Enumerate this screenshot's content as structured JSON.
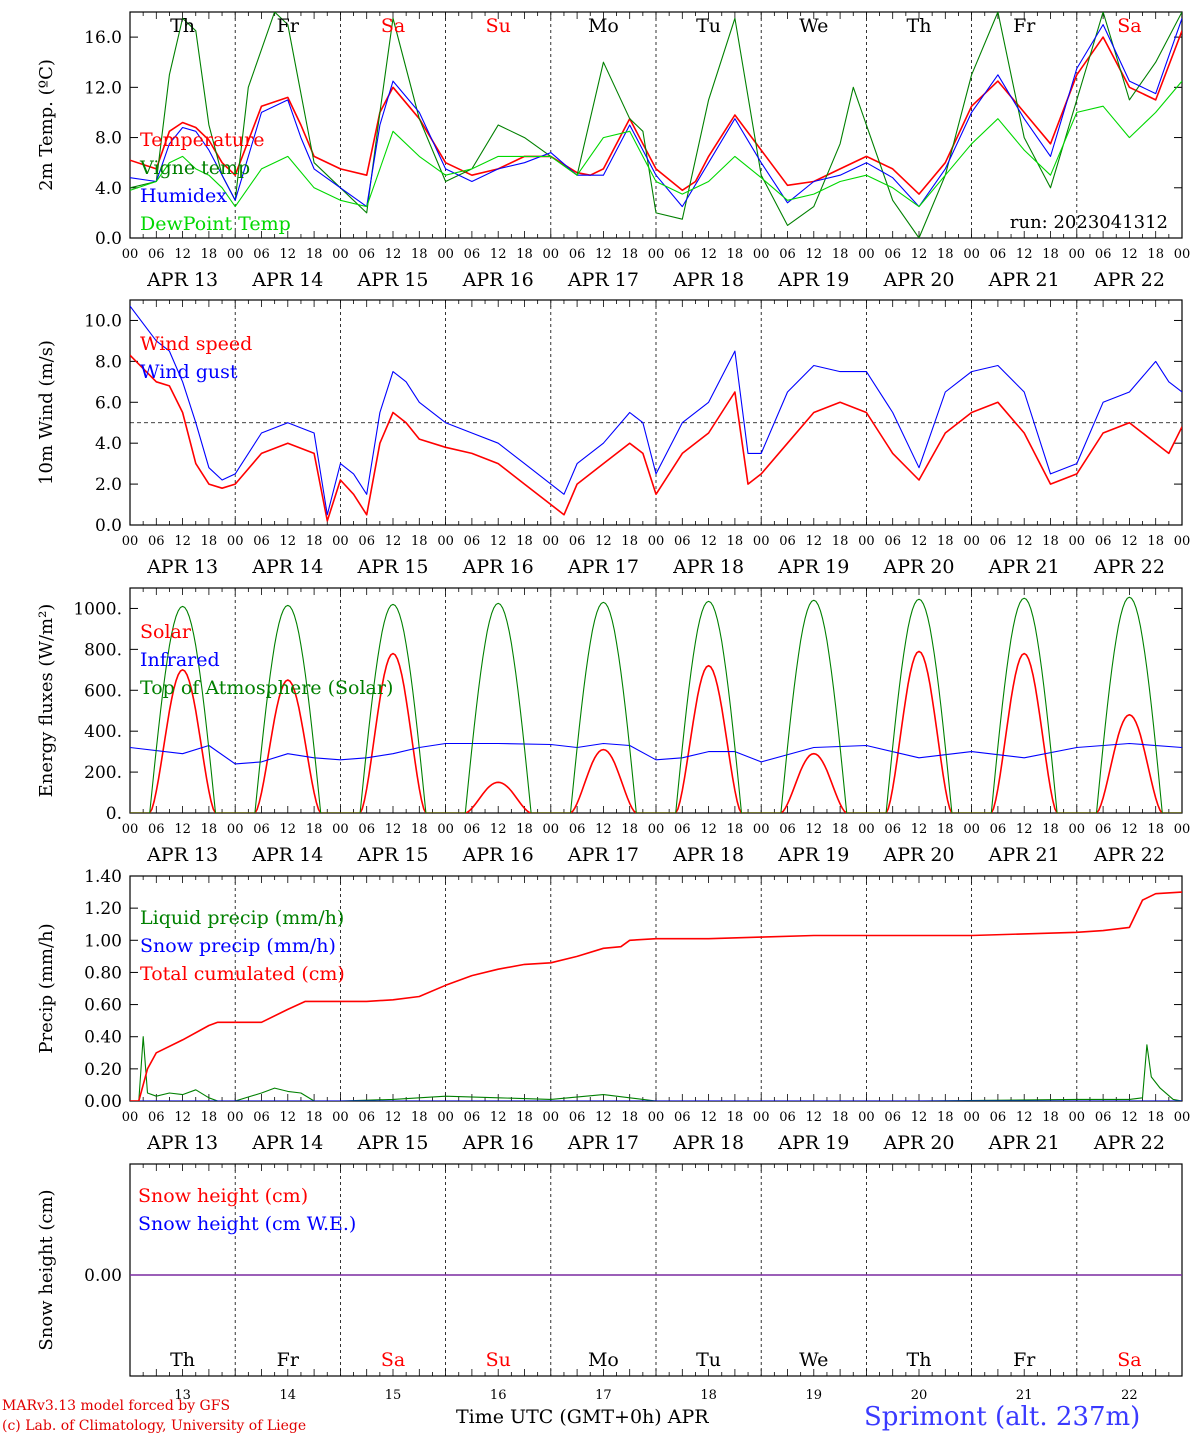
{
  "colors": {
    "red": "#ff0000",
    "green": "#008000",
    "blue": "#0000ff",
    "lightgreen": "#00d800",
    "purple": "#7a2aa0",
    "title_blue": "#3a3aff"
  },
  "footer": {
    "model": "MARv3.13 model forced by GFS",
    "lab": "(c) Lab. of Climatology, University of Liege",
    "xlabel": "Time UTC (GMT+0h)",
    "month": "APR",
    "station": "Sprimont (alt. 237m)"
  },
  "days_of_week": [
    "Th",
    "Fr",
    "Sa",
    "Su",
    "Mo",
    "Tu",
    "We",
    "Th",
    "Fr",
    "Sa"
  ],
  "weekend_days": [
    2,
    3,
    9
  ],
  "dates": [
    "APR 13",
    "APR 14",
    "APR 15",
    "APR 16",
    "APR 17",
    "APR 18",
    "APR 19",
    "APR 20",
    "APR 21",
    "APR 22"
  ],
  "day_numbers": [
    "13",
    "14",
    "15",
    "16",
    "17",
    "18",
    "19",
    "20",
    "21",
    "22"
  ],
  "hour_ticks": [
    "00",
    "06",
    "12",
    "18"
  ],
  "chart_data": [
    {
      "type": "line",
      "ylabel": "2m Temp. (ºC)",
      "ylim": [
        0,
        18
      ],
      "yticks": [
        "0.0",
        "4.0",
        "8.0",
        "12.0",
        "16.0"
      ],
      "ytick_values": [
        0,
        4,
        8,
        12,
        16
      ],
      "run_label": "run: 2023041312",
      "x_unit": "hours since APR 13 00 UTC",
      "series": [
        {
          "name": "Temperature",
          "color": "red",
          "x": [
            0,
            6,
            9,
            12,
            15,
            18,
            21,
            24,
            30,
            36,
            39,
            42,
            48,
            54,
            57,
            60,
            66,
            72,
            78,
            84,
            90,
            96,
            102,
            105,
            108,
            114,
            120,
            126,
            129,
            132,
            138,
            144,
            150,
            156,
            162,
            168,
            174,
            180,
            186,
            192,
            198,
            204,
            210,
            216,
            222,
            228,
            234,
            240
          ],
          "y": [
            6.2,
            5.5,
            8.5,
            9.2,
            8.8,
            7.8,
            6.0,
            5.0,
            10.5,
            11.2,
            9.0,
            6.5,
            5.5,
            5.0,
            10.0,
            12.0,
            9.5,
            6.0,
            5.0,
            5.5,
            6.5,
            6.5,
            5.2,
            5.0,
            5.5,
            9.5,
            5.5,
            3.8,
            4.5,
            6.5,
            9.8,
            7.0,
            4.2,
            4.5,
            5.5,
            6.5,
            5.5,
            3.5,
            6.0,
            10.5,
            12.5,
            10.0,
            7.5,
            13.0,
            16.0,
            12.0,
            11.0,
            16.5
          ]
        },
        {
          "name": "Vigne temp",
          "color": "green",
          "x": [
            0,
            6,
            9,
            12,
            15,
            18,
            21,
            24,
            27,
            33,
            36,
            42,
            48,
            54,
            57,
            60,
            66,
            72,
            78,
            84,
            90,
            96,
            102,
            108,
            114,
            117,
            120,
            126,
            132,
            138,
            144,
            150,
            156,
            162,
            165,
            168,
            174,
            180,
            186,
            192,
            198,
            204,
            210,
            216,
            222,
            228,
            234,
            240
          ],
          "y": [
            4.0,
            4.5,
            13.0,
            17.5,
            16.5,
            9.0,
            5.0,
            3.0,
            12.0,
            18.0,
            17.0,
            6.0,
            4.0,
            2.0,
            10.0,
            17.5,
            9.5,
            4.5,
            5.5,
            9.0,
            8.0,
            6.5,
            5.0,
            14.0,
            9.5,
            8.5,
            2.0,
            1.5,
            11.0,
            17.5,
            5.0,
            1.0,
            2.5,
            7.5,
            12.0,
            9.0,
            3.0,
            0.0,
            5.0,
            13.0,
            18.0,
            8.0,
            4.0,
            11.0,
            18.0,
            11.0,
            14.0,
            18.0
          ]
        },
        {
          "name": "Humidex",
          "color": "blue",
          "x": [
            0,
            6,
            9,
            12,
            15,
            18,
            21,
            24,
            30,
            36,
            39,
            42,
            48,
            54,
            57,
            60,
            66,
            72,
            78,
            84,
            90,
            96,
            102,
            108,
            114,
            120,
            126,
            132,
            138,
            144,
            150,
            156,
            162,
            168,
            174,
            180,
            186,
            192,
            198,
            204,
            210,
            216,
            222,
            228,
            234,
            240
          ],
          "y": [
            4.8,
            4.5,
            7.5,
            8.8,
            8.5,
            7.0,
            5.0,
            3.0,
            10.0,
            11.0,
            8.0,
            5.5,
            4.0,
            2.5,
            9.0,
            12.5,
            10.0,
            5.5,
            4.5,
            5.5,
            6.0,
            6.8,
            5.0,
            5.0,
            9.0,
            5.0,
            2.5,
            6.0,
            9.5,
            6.0,
            2.8,
            4.5,
            5.0,
            6.0,
            4.8,
            2.5,
            5.5,
            10.0,
            13.0,
            9.5,
            6.5,
            13.5,
            17.0,
            12.5,
            11.5,
            17.5
          ]
        },
        {
          "name": "DewPoint Temp",
          "color": "lightgreen",
          "x": [
            0,
            6,
            9,
            12,
            15,
            18,
            21,
            24,
            30,
            36,
            42,
            48,
            54,
            57,
            60,
            66,
            72,
            78,
            84,
            90,
            96,
            102,
            108,
            114,
            120,
            126,
            132,
            138,
            144,
            150,
            156,
            162,
            168,
            174,
            180,
            186,
            192,
            198,
            204,
            210,
            216,
            222,
            228,
            234,
            240
          ],
          "y": [
            3.8,
            4.5,
            6.0,
            6.5,
            5.5,
            5.0,
            4.0,
            2.5,
            5.5,
            6.5,
            4.0,
            3.0,
            2.5,
            5.5,
            8.5,
            6.5,
            5.0,
            5.5,
            6.5,
            6.5,
            6.5,
            5.0,
            8.0,
            8.5,
            4.5,
            3.5,
            4.5,
            6.5,
            4.8,
            3.0,
            3.5,
            4.5,
            5.0,
            4.0,
            2.5,
            5.0,
            7.5,
            9.5,
            7.0,
            5.0,
            10.0,
            10.5,
            8.0,
            10.0,
            12.5
          ]
        }
      ]
    },
    {
      "type": "line",
      "ylabel": "10m Wind (m/s)",
      "ylim": [
        0,
        11
      ],
      "yticks": [
        "0.0",
        "2.0",
        "4.0",
        "6.0",
        "8.0",
        "10.0"
      ],
      "ytick_values": [
        0,
        2,
        4,
        6,
        8,
        10
      ],
      "reference_line": 5.0,
      "x_unit": "hours since APR 13 00 UTC",
      "series": [
        {
          "name": "Wind speed",
          "color": "red",
          "x": [
            0,
            6,
            9,
            12,
            15,
            18,
            21,
            24,
            30,
            36,
            42,
            45,
            48,
            51,
            54,
            57,
            60,
            63,
            66,
            72,
            78,
            84,
            90,
            96,
            99,
            102,
            108,
            114,
            117,
            120,
            126,
            132,
            138,
            141,
            144,
            150,
            156,
            162,
            168,
            174,
            180,
            186,
            192,
            198,
            204,
            210,
            216,
            222,
            228,
            234,
            237,
            240
          ],
          "y": [
            8.3,
            7.0,
            6.8,
            5.5,
            3.0,
            2.0,
            1.8,
            2.0,
            3.5,
            4.0,
            3.5,
            0.2,
            2.2,
            1.5,
            0.5,
            4.0,
            5.5,
            5.0,
            4.2,
            3.8,
            3.5,
            3.0,
            2.0,
            1.0,
            0.5,
            2.0,
            3.0,
            4.0,
            3.5,
            1.5,
            3.5,
            4.5,
            6.5,
            2.0,
            2.5,
            4.0,
            5.5,
            6.0,
            5.5,
            3.5,
            2.2,
            4.5,
            5.5,
            6.0,
            4.5,
            2.0,
            2.5,
            4.5,
            5.0,
            4.0,
            3.5,
            4.8
          ]
        },
        {
          "name": "Wind gust",
          "color": "blue",
          "x": [
            0,
            6,
            9,
            12,
            15,
            18,
            21,
            24,
            30,
            36,
            42,
            45,
            48,
            51,
            54,
            57,
            60,
            63,
            66,
            72,
            78,
            84,
            90,
            96,
            99,
            102,
            108,
            114,
            117,
            120,
            126,
            132,
            138,
            141,
            144,
            150,
            156,
            162,
            168,
            174,
            180,
            186,
            192,
            198,
            204,
            210,
            216,
            222,
            228,
            234,
            237,
            240
          ],
          "y": [
            10.7,
            9.0,
            8.5,
            7.0,
            5.0,
            2.8,
            2.2,
            2.5,
            4.5,
            5.0,
            4.5,
            0.5,
            3.0,
            2.5,
            1.5,
            5.5,
            7.5,
            7.0,
            6.0,
            5.0,
            4.5,
            4.0,
            3.0,
            2.0,
            1.5,
            3.0,
            4.0,
            5.5,
            5.0,
            2.5,
            5.0,
            6.0,
            8.5,
            3.5,
            3.5,
            6.5,
            7.8,
            7.5,
            7.5,
            5.5,
            2.8,
            6.5,
            7.5,
            7.8,
            6.5,
            2.5,
            3.0,
            6.0,
            6.5,
            8.0,
            7.0,
            6.5
          ]
        }
      ]
    },
    {
      "type": "line",
      "ylabel": "Energy fluxes (W/m²)",
      "ylim": [
        0,
        1100
      ],
      "yticks": [
        "0.",
        "200.",
        "400.",
        "600.",
        "800.",
        "1000."
      ],
      "ytick_values": [
        0,
        200,
        400,
        600,
        800,
        1000
      ],
      "x_unit": "hours since APR 13 00 UTC",
      "series": [
        {
          "name": "Solar",
          "color": "red",
          "peaks_by_day": [
            700,
            650,
            780,
            150,
            310,
            720,
            290,
            790,
            780,
            480
          ]
        },
        {
          "name": "Infrared",
          "color": "blue",
          "x": [
            0,
            12,
            18,
            24,
            30,
            36,
            42,
            48,
            54,
            60,
            66,
            72,
            84,
            96,
            102,
            108,
            114,
            120,
            126,
            132,
            138,
            144,
            156,
            168,
            180,
            192,
            204,
            216,
            228,
            240
          ],
          "y": [
            320,
            290,
            330,
            240,
            250,
            290,
            270,
            260,
            270,
            290,
            320,
            340,
            340,
            335,
            320,
            340,
            330,
            260,
            270,
            300,
            300,
            250,
            320,
            330,
            270,
            300,
            270,
            320,
            340,
            320
          ]
        },
        {
          "name": "Top of Atmosphere (Solar)",
          "color": "green",
          "peaks_by_day": [
            1010,
            1015,
            1020,
            1025,
            1030,
            1035,
            1040,
            1045,
            1050,
            1055
          ]
        }
      ]
    },
    {
      "type": "line",
      "ylabel": "Precip (mm/h)",
      "ylim": [
        0,
        1.4
      ],
      "yticks": [
        "0.00",
        "0.20",
        "0.40",
        "0.60",
        "0.80",
        "1.00",
        "1.20",
        "1.40"
      ],
      "ytick_values": [
        0,
        0.2,
        0.4,
        0.6,
        0.8,
        1.0,
        1.2,
        1.4
      ],
      "x_unit": "hours since APR 13 00 UTC",
      "series": [
        {
          "name": "Liquid precip (mm/h)",
          "color": "green",
          "x": [
            0,
            2,
            3,
            4,
            6,
            9,
            12,
            15,
            18,
            20,
            24,
            30,
            33,
            36,
            39,
            42,
            45,
            48,
            60,
            72,
            84,
            96,
            108,
            114,
            120,
            180,
            216,
            228,
            231,
            232,
            233,
            235,
            238,
            240
          ],
          "y": [
            0,
            0,
            0.4,
            0.05,
            0.03,
            0.05,
            0.04,
            0.07,
            0.02,
            0,
            0,
            0.05,
            0.08,
            0.06,
            0.05,
            0,
            0,
            0,
            0.01,
            0.03,
            0.02,
            0.01,
            0.04,
            0.02,
            0,
            0,
            0.01,
            0.01,
            0.02,
            0.35,
            0.15,
            0.08,
            0.01,
            0
          ]
        },
        {
          "name": "Snow precip (mm/h)",
          "color": "blue",
          "x": [
            0,
            240
          ],
          "y": [
            0,
            0
          ]
        },
        {
          "name": "Total cumulated (cm)",
          "color": "red",
          "x": [
            0,
            2,
            4,
            6,
            12,
            18,
            20,
            24,
            30,
            36,
            40,
            48,
            54,
            60,
            66,
            72,
            78,
            84,
            90,
            96,
            102,
            108,
            112,
            114,
            120,
            132,
            144,
            156,
            168,
            180,
            192,
            204,
            216,
            222,
            228,
            231,
            234,
            240
          ],
          "y": [
            0,
            0,
            0.2,
            0.3,
            0.38,
            0.47,
            0.49,
            0.49,
            0.49,
            0.57,
            0.62,
            0.62,
            0.62,
            0.63,
            0.65,
            0.72,
            0.78,
            0.82,
            0.85,
            0.86,
            0.9,
            0.95,
            0.96,
            1.0,
            1.01,
            1.01,
            1.02,
            1.03,
            1.03,
            1.03,
            1.03,
            1.04,
            1.05,
            1.06,
            1.08,
            1.25,
            1.29,
            1.3
          ]
        }
      ]
    },
    {
      "type": "line",
      "ylabel": "Snow height (cm)",
      "yticks": [
        "0.00"
      ],
      "ytick_values": [
        0
      ],
      "x_unit": "hours since APR 13 00 UTC",
      "series": [
        {
          "name": "Snow height (cm)",
          "color": "red",
          "x": [
            0,
            240
          ],
          "y": [
            0,
            0
          ]
        },
        {
          "name": "Snow height (cm W.E.)",
          "color": "blue",
          "x": [
            0,
            240
          ],
          "y": [
            0,
            0
          ]
        }
      ]
    }
  ]
}
